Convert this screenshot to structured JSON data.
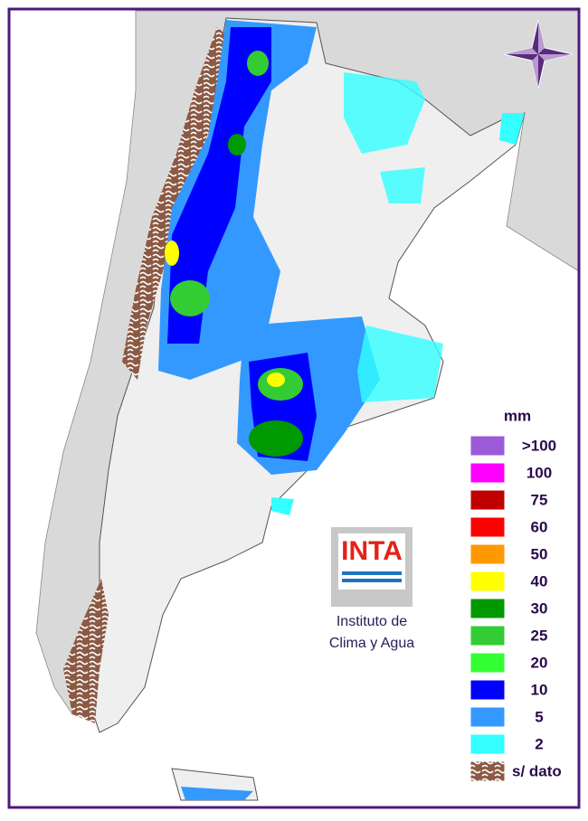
{
  "legend": {
    "unit": "mm",
    "items": [
      {
        "label": ">100",
        "color": "#9b5bd8"
      },
      {
        "label": "100",
        "color": "#ff00ff"
      },
      {
        "label": "75",
        "color": "#c00000"
      },
      {
        "label": "60",
        "color": "#ff0000"
      },
      {
        "label": "50",
        "color": "#ff9900"
      },
      {
        "label": "40",
        "color": "#ffff00"
      },
      {
        "label": "30",
        "color": "#009900"
      },
      {
        "label": "25",
        "color": "#33cc33"
      },
      {
        "label": "20",
        "color": "#33ff33"
      },
      {
        "label": "10",
        "color": "#0000ff"
      },
      {
        "label": "5",
        "color": "#3399ff"
      },
      {
        "label": "2",
        "color": "#33ffff"
      },
      {
        "label": "s/ dato",
        "color": "#8b5a44"
      }
    ]
  },
  "logo": {
    "name": "INTA",
    "caption_line1": "Instituto de",
    "caption_line2": "Clima y Agua"
  }
}
